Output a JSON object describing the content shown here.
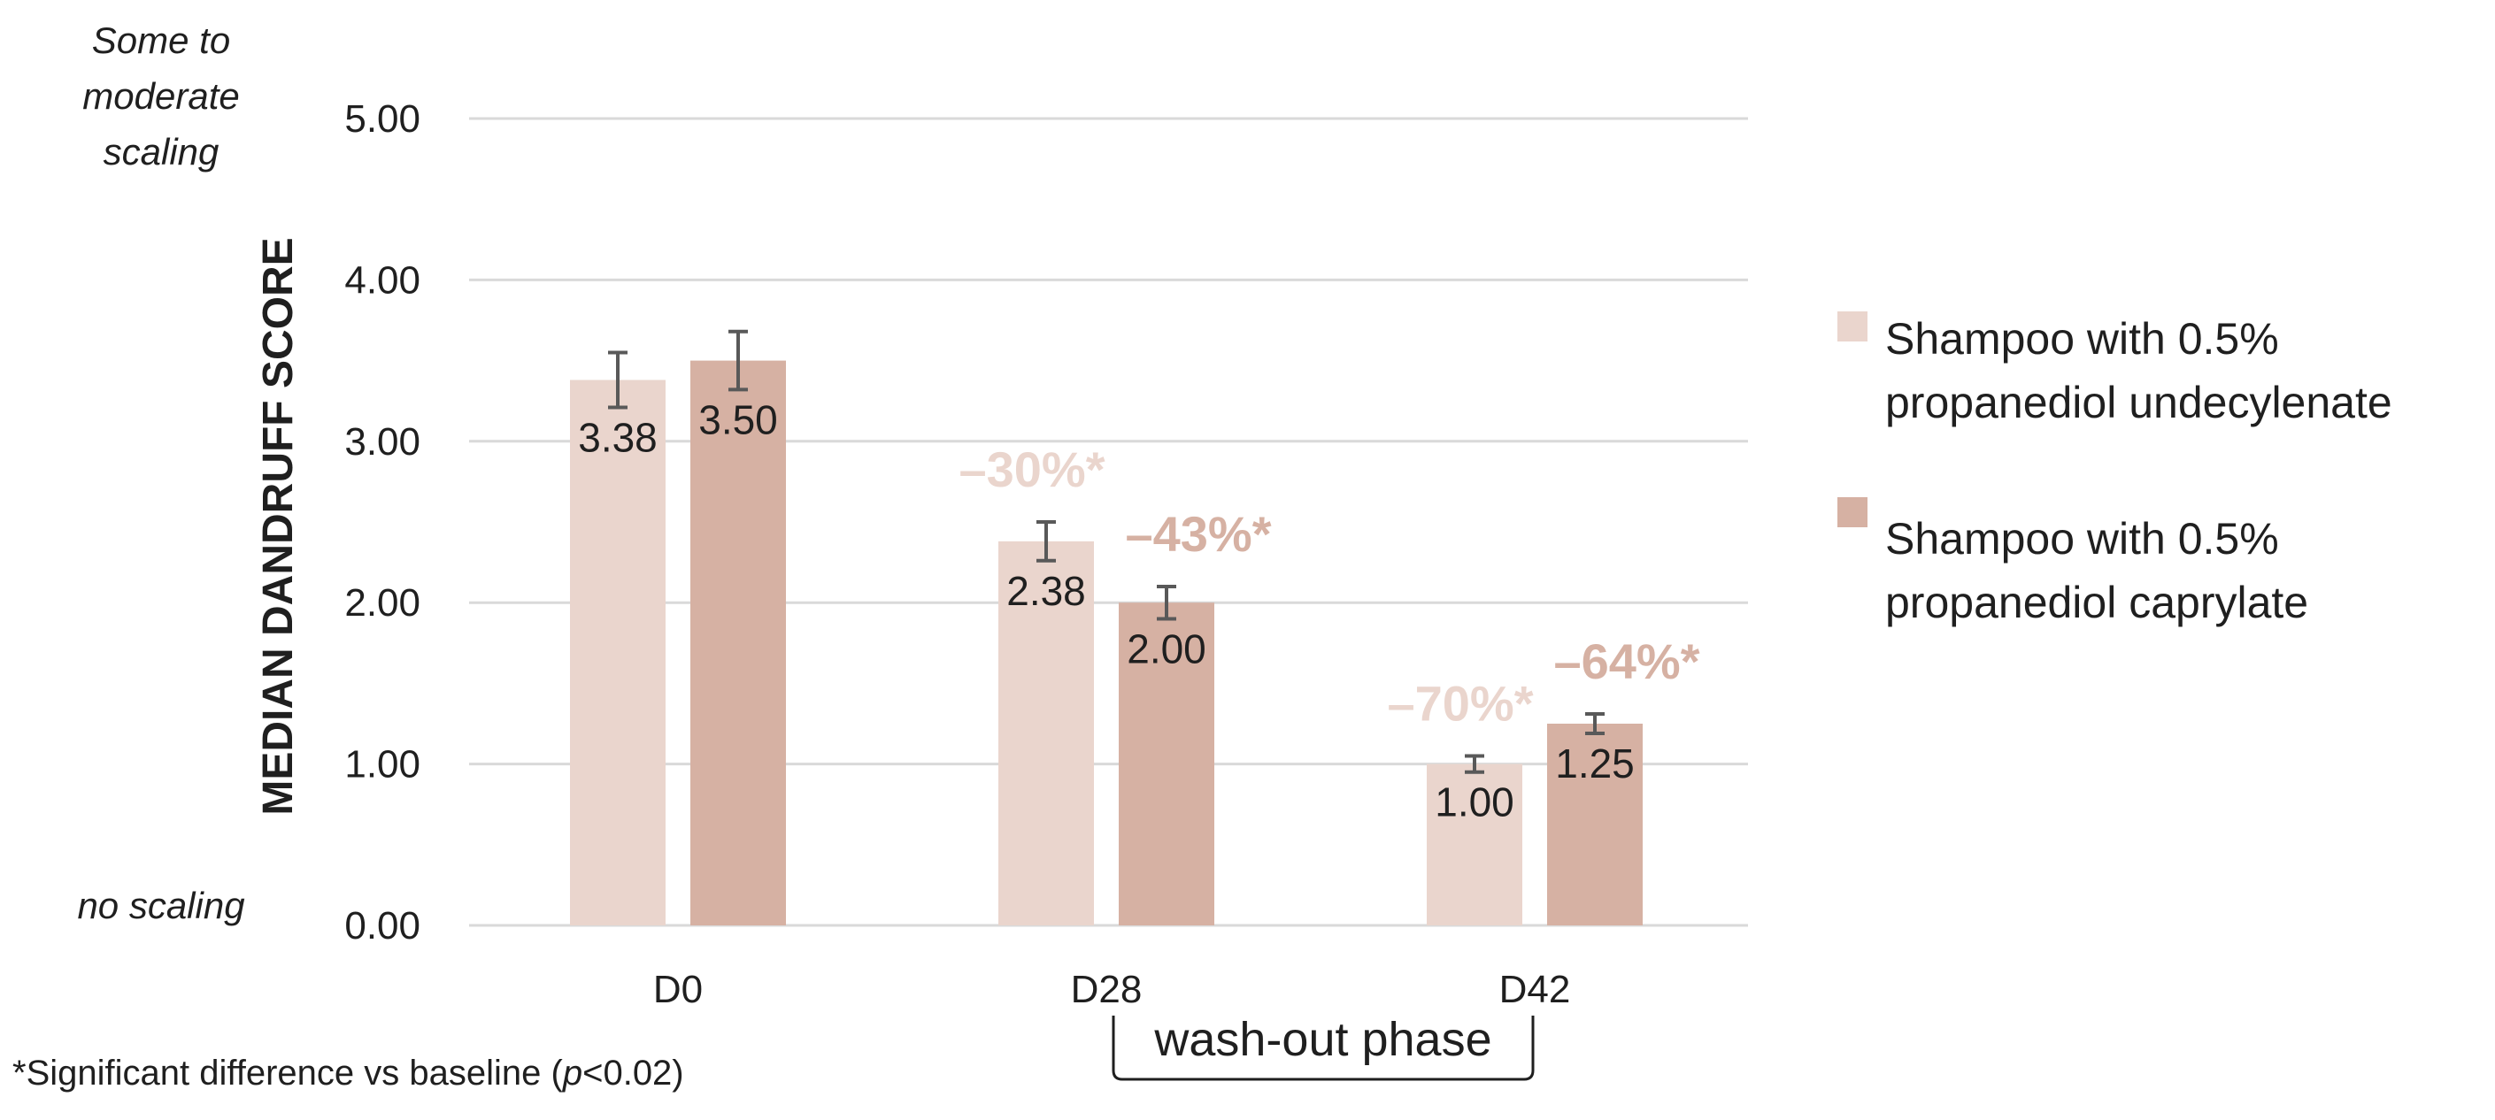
{
  "chart_data": {
    "type": "bar",
    "categories": [
      "D0",
      "D28",
      "D42"
    ],
    "ylabel": "MEDIAN DANDRUFF SCORE",
    "ylim": [
      0,
      5
    ],
    "yticks": [
      "0.00",
      "1.00",
      "2.00",
      "3.00",
      "4.00",
      "5.00"
    ],
    "grid": true,
    "legend_position": "right",
    "scale_annotations": {
      "top": [
        "Some to",
        "moderate",
        "scaling"
      ],
      "bottom": "no scaling"
    },
    "series": [
      {
        "name": "Shampoo with 0.5% propanediol undecylenate",
        "legend_lines": [
          "Shampoo with 0.5%",
          "propanediol undecylenate"
        ],
        "color": "#ead5cd",
        "values": [
          3.38,
          2.38,
          1.0
        ],
        "value_labels": [
          "3.38",
          "2.38",
          "1.00"
        ],
        "errors": [
          0.17,
          0.12,
          0.05
        ],
        "change_labels": [
          "",
          "–30%*",
          "–70%*"
        ]
      },
      {
        "name": "Shampoo with 0.5% propanediol caprylate",
        "legend_lines": [
          "Shampoo with 0.5%",
          "propanediol caprylate"
        ],
        "color": "#d6b1a3",
        "values": [
          3.5,
          2.0,
          1.25
        ],
        "value_labels": [
          "3.50",
          "2.00",
          "1.25"
        ],
        "errors": [
          0.18,
          0.1,
          0.06
        ],
        "change_labels": [
          "",
          "–43%*",
          "–64%*"
        ]
      }
    ],
    "annotations": {
      "bracket_label": "wash-out phase",
      "footnote_prefix": "*Significant difference vs baseline  (",
      "footnote_p": "p",
      "footnote_suffix": "<0.02)"
    }
  },
  "colors": {
    "grid": "#d9d9d9",
    "text": "#1f1f1f",
    "error_bar": "#595959",
    "change_label_1": "#ead5cd",
    "change_label_2": "#d6b1a3"
  }
}
